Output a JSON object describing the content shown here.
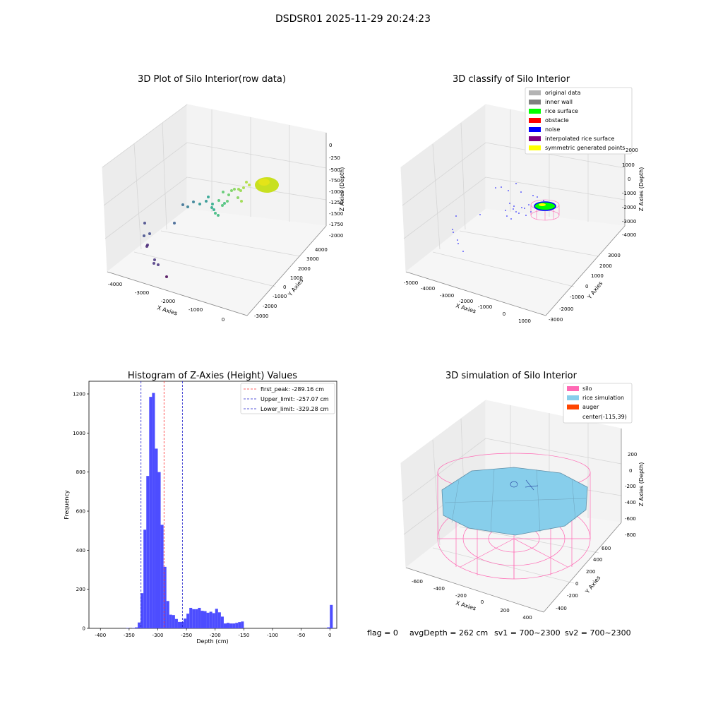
{
  "suptitle": "DSDSR01 2025-11-29 20:24:23",
  "colors": {
    "pane": "#f2f2f2",
    "grid": "#d6d6d6",
    "edge": "#555555",
    "hist_bar": "#4d4dff",
    "peak_line": "#ff3333",
    "limit_line": "#2222cc",
    "silo": "#ff69b4",
    "rice": "#87ceeb",
    "auger": "#ff4500"
  },
  "chart_data": [
    {
      "id": "raw",
      "type": "scatter",
      "projection": "3d",
      "title": "3D Plot of Silo Interior(row data)",
      "xlabel": "X Axies",
      "ylabel": "Y Axies",
      "zlabel": "Z Axies (Depth)",
      "xticks": [
        "-4000",
        "-3000",
        "-2000",
        "-1000",
        "0"
      ],
      "yticks": [
        "-3000",
        "-2000",
        "-1000",
        "0",
        "1000",
        "2000",
        "3000",
        "4000"
      ],
      "zticks": [
        "0",
        "-250",
        "-500",
        "-750",
        "-1000",
        "-1250",
        "-1500",
        "-1750",
        "-2000"
      ],
      "colormap": "viridis"
    },
    {
      "id": "classify",
      "type": "scatter",
      "projection": "3d",
      "title": "3D classify of Silo Interior",
      "xlabel": "X Axies",
      "ylabel": "Y Axies",
      "zlabel": "Z Axies (Depth)",
      "xticks": [
        "-5000",
        "-4000",
        "-3000",
        "-2000",
        "-1000",
        "0",
        "1000"
      ],
      "yticks": [
        "-3000",
        "-2000",
        "-1000",
        "0",
        "1000",
        "2000",
        "3000"
      ],
      "zticks": [
        "2000",
        "1000",
        "0",
        "-1000",
        "-2000",
        "-3000",
        "-4000"
      ],
      "legend_position": "top-right",
      "legend": [
        {
          "label": "original data",
          "color": "#b3b3b3"
        },
        {
          "label": "inner wall",
          "color": "#808080"
        },
        {
          "label": "rice surface",
          "color": "#00ff00"
        },
        {
          "label": "obstacle",
          "color": "#ff0000"
        },
        {
          "label": "noise",
          "color": "#0000ff"
        },
        {
          "label": "interpolated rice surface",
          "color": "#800080"
        },
        {
          "label": "symmetric generated points",
          "color": "#ffff00"
        }
      ]
    },
    {
      "id": "histogram",
      "type": "bar",
      "title": "Histogram of Z-Axies (Height) Values",
      "xlabel": "Depth (cm)",
      "ylabel": "Frequency",
      "xlim": [
        -420,
        12
      ],
      "ylim": [
        0,
        1265
      ],
      "xticks": [
        -400,
        -350,
        -300,
        -250,
        -200,
        -150,
        -100,
        -50,
        0
      ],
      "yticks": [
        0,
        200,
        400,
        600,
        800,
        1000,
        1200
      ],
      "bin_width": 5,
      "bins": [
        [
          -355,
          2
        ],
        [
          -345,
          2
        ],
        [
          -340,
          5
        ],
        [
          -335,
          30
        ],
        [
          -330,
          180
        ],
        [
          -325,
          505
        ],
        [
          -320,
          780
        ],
        [
          -315,
          1185
        ],
        [
          -310,
          1205
        ],
        [
          -305,
          920
        ],
        [
          -300,
          800
        ],
        [
          -295,
          530
        ],
        [
          -290,
          315
        ],
        [
          -285,
          140
        ],
        [
          -280,
          70
        ],
        [
          -275,
          68
        ],
        [
          -270,
          48
        ],
        [
          -265,
          33
        ],
        [
          -260,
          33
        ],
        [
          -255,
          50
        ],
        [
          -250,
          75
        ],
        [
          -245,
          105
        ],
        [
          -240,
          98
        ],
        [
          -235,
          98
        ],
        [
          -230,
          105
        ],
        [
          -225,
          90
        ],
        [
          -220,
          88
        ],
        [
          -215,
          80
        ],
        [
          -210,
          85
        ],
        [
          -205,
          78
        ],
        [
          -200,
          100
        ],
        [
          -195,
          82
        ],
        [
          -190,
          60
        ],
        [
          -185,
          25
        ],
        [
          -180,
          28
        ],
        [
          -175,
          25
        ],
        [
          -170,
          25
        ],
        [
          -165,
          28
        ],
        [
          -160,
          32
        ],
        [
          -155,
          35
        ],
        [
          -5,
          5
        ],
        [
          0,
          120
        ]
      ],
      "vlines": [
        {
          "x": -289.16,
          "label": "first_peak: -289.16 cm",
          "color": "#ff3333"
        },
        {
          "x": -257.07,
          "label": "Upper_limit: -257.07 cm",
          "color": "#2222cc"
        },
        {
          "x": -329.28,
          "label": "Lower_limit: -329.28 cm",
          "color": "#2222cc"
        }
      ],
      "legend_position": "top-right"
    },
    {
      "id": "simulation",
      "type": "surface",
      "projection": "3d",
      "title": "3D simulation of Silo Interior",
      "xlabel": "X Axies",
      "ylabel": "Y Axies",
      "zlabel": "Z Axies (Depth)",
      "xticks": [
        "-600",
        "-400",
        "-200",
        "0",
        "200",
        "400"
      ],
      "yticks": [
        "-400",
        "-200",
        "0",
        "200",
        "400",
        "600"
      ],
      "zticks": [
        "200",
        "0",
        "-200",
        "-400",
        "-600",
        "-800"
      ],
      "legend_position": "top-right",
      "legend": [
        {
          "label": "silo",
          "color": "#ff69b4"
        },
        {
          "label": "rice simulation",
          "color": "#87ceeb"
        },
        {
          "label": "auger",
          "color": "#ff4500"
        },
        {
          "label": "center(-115,39)",
          "color": "#ffffff"
        }
      ]
    }
  ],
  "status": {
    "flag": "flag = 0",
    "avg_depth": "avgDepth = 262 cm",
    "sv1": "sv1 = 700~2300",
    "sv2": "sv2 = 700~2300"
  }
}
